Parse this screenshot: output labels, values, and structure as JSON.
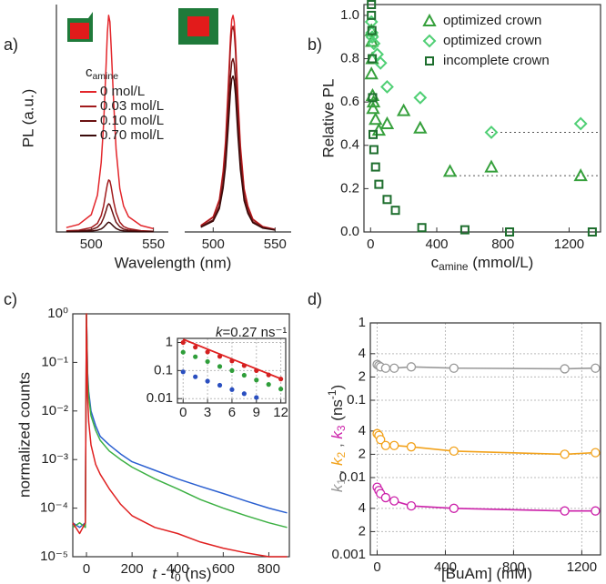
{
  "chart_data": [
    {
      "type": "line",
      "label": "a)",
      "ylabel": "PL (a.u.)",
      "xlabel": "Wavelength (nm)",
      "xlim": [
        472,
        562
      ],
      "ylim": [
        0,
        1.05
      ],
      "xticks": [
        500,
        550
      ],
      "legend_title": [
        {
          "text": "c"
        },
        {
          "text": "amine",
          "sub": true
        }
      ],
      "x": [
        480,
        490,
        500,
        505,
        508,
        510,
        512,
        513,
        514,
        515,
        516,
        518,
        520,
        523,
        526,
        530,
        540,
        550
      ],
      "series": [
        {
          "name": "0 mol/L",
          "color": "#e3262b",
          "values": [
            0.02,
            0.035,
            0.08,
            0.17,
            0.32,
            0.5,
            0.78,
            0.92,
            1.0,
            0.97,
            0.86,
            0.6,
            0.38,
            0.2,
            0.12,
            0.07,
            0.03,
            0.015
          ]
        },
        {
          "name": "0.03 mol/L",
          "color": "#a11a1c",
          "values": [
            0.005,
            0.008,
            0.02,
            0.04,
            0.075,
            0.12,
            0.19,
            0.22,
            0.24,
            0.235,
            0.21,
            0.14,
            0.09,
            0.045,
            0.025,
            0.015,
            0.006,
            0.003
          ]
        },
        {
          "name": "0.10 mol/L",
          "color": "#6b1212",
          "values": [
            0.002,
            0.004,
            0.01,
            0.022,
            0.04,
            0.065,
            0.1,
            0.12,
            0.13,
            0.125,
            0.11,
            0.075,
            0.045,
            0.024,
            0.013,
            0.008,
            0.003,
            0.002
          ]
        },
        {
          "name": "0.70 mol/L",
          "color": "#3a0a0a",
          "values": [
            0.001,
            0.002,
            0.004,
            0.008,
            0.014,
            0.022,
            0.035,
            0.041,
            0.045,
            0.043,
            0.038,
            0.026,
            0.016,
            0.008,
            0.005,
            0.003,
            0.001,
            0.001
          ]
        }
      ]
    },
    {
      "type": "line",
      "xlim": [
        477,
        563
      ],
      "ylim": [
        0,
        1.05
      ],
      "xticks": [
        500,
        550
      ],
      "x": [
        490,
        500,
        505,
        508,
        510,
        512,
        514,
        515,
        516,
        517,
        518,
        520,
        522,
        525,
        528,
        532,
        540,
        550
      ],
      "series": [
        {
          "color": "#e3262b",
          "values": [
            0.03,
            0.07,
            0.15,
            0.28,
            0.42,
            0.65,
            0.9,
            0.98,
            1.0,
            0.97,
            0.88,
            0.62,
            0.4,
            0.2,
            0.12,
            0.06,
            0.025,
            0.012
          ]
        },
        {
          "color": "#a11a1c",
          "values": [
            0.029,
            0.067,
            0.143,
            0.266,
            0.399,
            0.618,
            0.855,
            0.931,
            0.95,
            0.922,
            0.836,
            0.589,
            0.38,
            0.19,
            0.114,
            0.057,
            0.024,
            0.011
          ]
        },
        {
          "color": "#6b1212",
          "values": [
            0.024,
            0.056,
            0.12,
            0.224,
            0.336,
            0.52,
            0.72,
            0.784,
            0.8,
            0.776,
            0.704,
            0.496,
            0.32,
            0.16,
            0.096,
            0.048,
            0.02,
            0.01
          ]
        },
        {
          "color": "#3a0a0a",
          "values": [
            0.022,
            0.05,
            0.108,
            0.202,
            0.302,
            0.468,
            0.648,
            0.706,
            0.72,
            0.698,
            0.634,
            0.446,
            0.288,
            0.144,
            0.086,
            0.043,
            0.018,
            0.009
          ]
        }
      ]
    },
    {
      "type": "scatter",
      "label": "b)",
      "ylabel": "Relative PL",
      "xlabel": [
        {
          "text": "c"
        },
        {
          "text": "amine",
          "sub": true
        },
        {
          "text": " (mmol/L)"
        }
      ],
      "xlim": [
        -40,
        1390
      ],
      "ylim": [
        0,
        1.05
      ],
      "xticks": [
        0,
        400,
        800,
        1200
      ],
      "yticks": [
        {
          "value": 0,
          "label": "0.0"
        },
        {
          "value": 0.2,
          "label": "0.2"
        },
        {
          "value": 0.4,
          "label": "0.4"
        },
        {
          "value": 0.6,
          "label": "0.6"
        },
        {
          "value": 0.8,
          "label": "0.8"
        },
        {
          "value": 1,
          "label": "1.0"
        }
      ],
      "hlines": [
        {
          "y": 0.46,
          "xstart": 730
        },
        {
          "y": 0.26,
          "xstart": 510
        }
      ],
      "series": [
        {
          "name": "optimized crown",
          "marker": "triangle",
          "color": "#36a03c",
          "x": [
            5,
            8,
            10,
            5,
            12,
            15,
            18,
            30,
            50,
            100,
            200,
            300,
            480,
            730,
            1270
          ],
          "values": [
            0.93,
            0.88,
            0.8,
            0.73,
            0.63,
            0.57,
            0.6,
            0.52,
            0.47,
            0.5,
            0.56,
            0.48,
            0.28,
            0.3,
            0.26
          ]
        },
        {
          "name": "optimized crown",
          "marker": "diamond",
          "color": "#4fcf74",
          "x": [
            5,
            8,
            10,
            20,
            40,
            60,
            100,
            300,
            730,
            1270
          ],
          "values": [
            0.97,
            0.92,
            0.9,
            0.87,
            0.82,
            0.78,
            0.67,
            0.62,
            0.46,
            0.5
          ]
        },
        {
          "name": "incomplete crown",
          "marker": "square",
          "color": "#1e6e2e",
          "x": [
            5,
            5,
            8,
            10,
            12,
            15,
            20,
            30,
            50,
            100,
            150,
            310,
            570,
            840,
            1340
          ],
          "values": [
            1.05,
            1.0,
            0.93,
            0.8,
            0.62,
            0.45,
            0.38,
            0.3,
            0.22,
            0.15,
            0.1,
            0.02,
            0.01,
            0.0,
            0.0
          ]
        }
      ]
    },
    {
      "type": "line",
      "label": "c)",
      "ylabel": "normalized counts",
      "xlabel": [
        {
          "text": "t",
          "italic": true
        },
        {
          "text": " - "
        },
        {
          "text": "t",
          "italic": true
        },
        {
          "text": "0",
          "sub": true
        },
        {
          "text": " (ns)"
        }
      ],
      "log_y": true,
      "xlim": [
        -60,
        890
      ],
      "ylim": [
        1e-05,
        1
      ],
      "xticks": [
        0,
        200,
        400,
        600,
        800
      ],
      "yticks": [
        {
          "value": 1e-05,
          "label": "10⁻⁵"
        },
        {
          "value": 0.0001,
          "label": "10⁻⁴"
        },
        {
          "value": 0.001,
          "label": "10⁻³"
        },
        {
          "value": 0.01,
          "label": "10⁻²"
        },
        {
          "value": 0.1,
          "label": "10⁻¹"
        },
        {
          "value": 1,
          "label": "10⁰"
        }
      ],
      "x": [
        -60,
        -30,
        -5,
        0,
        5,
        10,
        20,
        40,
        60,
        100,
        150,
        200,
        300,
        400,
        500,
        600,
        700,
        800,
        880
      ],
      "series": [
        {
          "color": "#2a5fd0",
          "values": [
            5e-05,
            4e-05,
            5e-05,
            1,
            0.06,
            0.025,
            0.01,
            0.005,
            0.003,
            0.002,
            0.0013,
            0.0009,
            0.0006,
            0.0004,
            0.00028,
            0.0002,
            0.00014,
            0.0001,
            8e-05
          ]
        },
        {
          "color": "#3cb043",
          "values": [
            4e-05,
            5e-05,
            4e-05,
            1,
            0.05,
            0.02,
            0.008,
            0.004,
            0.0025,
            0.0015,
            0.001,
            0.0007,
            0.0004,
            0.00025,
            0.00015,
            0.0001,
            7e-05,
            5e-05,
            4e-05
          ]
        },
        {
          "color": "#e02020",
          "values": [
            5e-05,
            3e-05,
            5e-05,
            1,
            0.02,
            0.006,
            0.002,
            0.0008,
            0.0005,
            0.00025,
            0.00012,
            7e-05,
            4e-05,
            3e-05,
            2e-05,
            1.5e-05,
            1.2e-05,
            1e-05,
            1e-05
          ]
        }
      ]
    },
    {
      "type": "scatter",
      "log_y": true,
      "grid": true,
      "xlim": [
        -0.7,
        12.6
      ],
      "ylim": [
        0.007,
        1.4
      ],
      "xticks": [
        0,
        3,
        6,
        9,
        12
      ],
      "yticks": [
        0.01,
        0.1,
        1
      ],
      "annotation": [
        {
          "text": "k",
          "italic": true
        },
        {
          "text": "=0.27 ns⁻¹"
        }
      ],
      "fit": {
        "color": "#e02020",
        "x": [
          0,
          12
        ],
        "values": [
          1.3,
          0.051
        ]
      },
      "x": [
        0,
        1.5,
        3,
        4.5,
        6,
        7.5,
        9,
        10.5,
        12
      ],
      "series": [
        {
          "marker": "dot",
          "color": "#d42020",
          "values": [
            1.0,
            0.68,
            0.46,
            0.32,
            0.22,
            0.15,
            0.1,
            0.07,
            0.05
          ]
        },
        {
          "marker": "dot",
          "color": "#2f9e3a",
          "values": [
            0.45,
            0.31,
            0.21,
            0.14,
            0.1,
            0.068,
            0.046,
            0.032,
            0.022
          ]
        },
        {
          "marker": "dot",
          "color": "#2a4fc0",
          "values": [
            0.09,
            0.06,
            0.042,
            0.03,
            0.021,
            0.015,
            0.011,
            null,
            null
          ]
        }
      ]
    },
    {
      "type": "line",
      "label": "d)",
      "marker": "circle",
      "log_y": true,
      "grid": true,
      "xlabel": [
        {
          "text": "[BuAm] (mM)"
        }
      ],
      "ylabel": [
        {
          "text": "k",
          "italic": true,
          "color": "#999999"
        },
        {
          "text": "1",
          "sub": true,
          "color": "#999999"
        },
        {
          "text": " , ",
          "color": "#666666"
        },
        {
          "text": "k",
          "italic": true,
          "color": "#f2a21b"
        },
        {
          "text": "2",
          "sub": true,
          "color": "#f2a21b"
        },
        {
          "text": " , ",
          "color": "#666666"
        },
        {
          "text": "k",
          "italic": true,
          "color": "#cc22aa"
        },
        {
          "text": "3",
          "sub": true,
          "color": "#cc22aa"
        },
        {
          "text": " (ns"
        },
        {
          "text": "-1",
          "sup": true
        },
        {
          "text": ")"
        }
      ],
      "xlim": [
        -40,
        1310
      ],
      "ylim": [
        0.001,
        1
      ],
      "xticks": [
        0,
        400,
        800,
        1200
      ],
      "yticks": [
        {
          "value": 0.001,
          "label": "0.001"
        },
        {
          "value": 0.002,
          "label": "2"
        },
        {
          "value": 0.004,
          "label": "4"
        },
        {
          "value": 0.01,
          "label": "0.01"
        },
        {
          "value": 0.02,
          "label": "2"
        },
        {
          "value": 0.04,
          "label": "4"
        },
        0.1,
        {
          "value": 0.2,
          "label": "2"
        },
        {
          "value": 0.4,
          "label": "4"
        },
        1
      ],
      "x": [
        0,
        10,
        20,
        50,
        100,
        200,
        450,
        1100,
        1280
      ],
      "series": [
        {
          "color": "#999999",
          "values": [
            0.29,
            0.28,
            0.27,
            0.26,
            0.26,
            0.27,
            0.26,
            0.255,
            0.26
          ]
        },
        {
          "color": "#f2a21b",
          "values": [
            0.037,
            0.035,
            0.031,
            0.026,
            0.026,
            0.025,
            0.022,
            0.02,
            0.021
          ]
        },
        {
          "color": "#cc22aa",
          "values": [
            0.0075,
            0.0068,
            0.0062,
            0.0055,
            0.005,
            0.0043,
            0.004,
            0.0037,
            0.0037
          ]
        }
      ]
    }
  ]
}
